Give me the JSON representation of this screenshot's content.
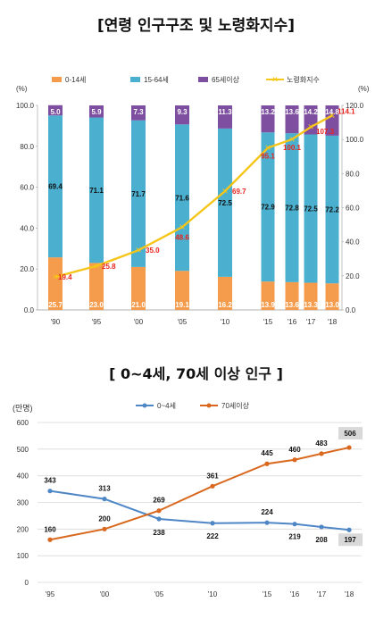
{
  "titles": {
    "chart1": "[연령 인구구조 및 노령화지수]",
    "chart2": "[ 0~4세, 70세 이상 인구 ]"
  },
  "colors": {
    "c0_14": "#f59b4c",
    "c15_64": "#4bb0cf",
    "c65": "#7e4ea0",
    "aging": "#f5c518",
    "aging_label": "#e8231c",
    "s0_4": "#4e86c6",
    "s70": "#d9681e"
  },
  "chart_data": [
    {
      "type": "bar",
      "title": "[연령 인구구조 및 노령화지수]",
      "categories": [
        "'90",
        "'95",
        "'00",
        "'05",
        "'10",
        "'15",
        "'16",
        "'17",
        "'18"
      ],
      "stacked": true,
      "left_axis": {
        "unit": "(%)",
        "ylim": [
          0,
          100
        ],
        "ticks": [
          "0.0",
          "20.0",
          "40.0",
          "60.0",
          "80.0",
          "100.0"
        ]
      },
      "right_axis": {
        "unit": "(%)",
        "ylim": [
          0,
          120
        ],
        "ticks": [
          "0.0",
          "20.0",
          "40.0",
          "60.0",
          "80.0",
          "100.0",
          "120.0"
        ]
      },
      "series": [
        {
          "name": "0-14세",
          "values": [
            25.7,
            23.0,
            21.0,
            19.1,
            16.2,
            13.9,
            13.6,
            13.3,
            13.0
          ],
          "labels": [
            "25.7",
            "23.0",
            "21.0",
            "19.1",
            "16.2",
            "13.9",
            "13.6",
            "13.3",
            "13.0"
          ]
        },
        {
          "name": "15-64세",
          "values": [
            69.4,
            71.1,
            71.7,
            71.6,
            72.5,
            72.9,
            72.8,
            72.5,
            72.2
          ],
          "labels": [
            "69.4",
            "71.1",
            "71.7",
            "71.6",
            "72.5",
            "72.9",
            "72.8",
            "72.5",
            "72.2"
          ]
        },
        {
          "name": "65세이상",
          "values": [
            5.0,
            5.9,
            7.3,
            9.3,
            11.3,
            13.2,
            13.6,
            14.2,
            14.8
          ],
          "labels": [
            "5.0",
            "5.9",
            "7.3",
            "9.3",
            "11.3",
            "13.2",
            "13.6",
            "14.2",
            "14.8"
          ]
        },
        {
          "name": "노령화지수",
          "type": "line",
          "axis": "right",
          "values": [
            19.4,
            25.8,
            35.0,
            48.6,
            69.7,
            95.1,
            100.1,
            107.3,
            114.1
          ],
          "labels": [
            "19.4",
            "25.8",
            "35.0",
            "48.6",
            "69.7",
            "95.1",
            "100.1",
            "107.3",
            "114.1"
          ]
        }
      ],
      "legend": "top"
    },
    {
      "type": "line",
      "title": "[ 0~4세, 70세 이상 인구 ]",
      "ylabel": "(만명)",
      "categories": [
        "'95",
        "'00",
        "'05",
        "'10",
        "'15",
        "'16",
        "'17",
        "'18"
      ],
      "ylim": [
        0,
        600
      ],
      "yticks": [
        "0",
        "100",
        "200",
        "300",
        "400",
        "500",
        "600"
      ],
      "grid": true,
      "series": [
        {
          "name": "0~4세",
          "values": [
            343,
            313,
            238,
            222,
            224,
            219,
            208,
            197
          ],
          "labels": [
            "343",
            "313",
            "238",
            "222",
            "224",
            "219",
            "208",
            "197"
          ]
        },
        {
          "name": "70세이상",
          "values": [
            160,
            200,
            269,
            361,
            445,
            460,
            483,
            506
          ],
          "labels": [
            "160",
            "200",
            "269",
            "361",
            "445",
            "460",
            "483",
            "506"
          ]
        }
      ],
      "legend": "top"
    }
  ]
}
